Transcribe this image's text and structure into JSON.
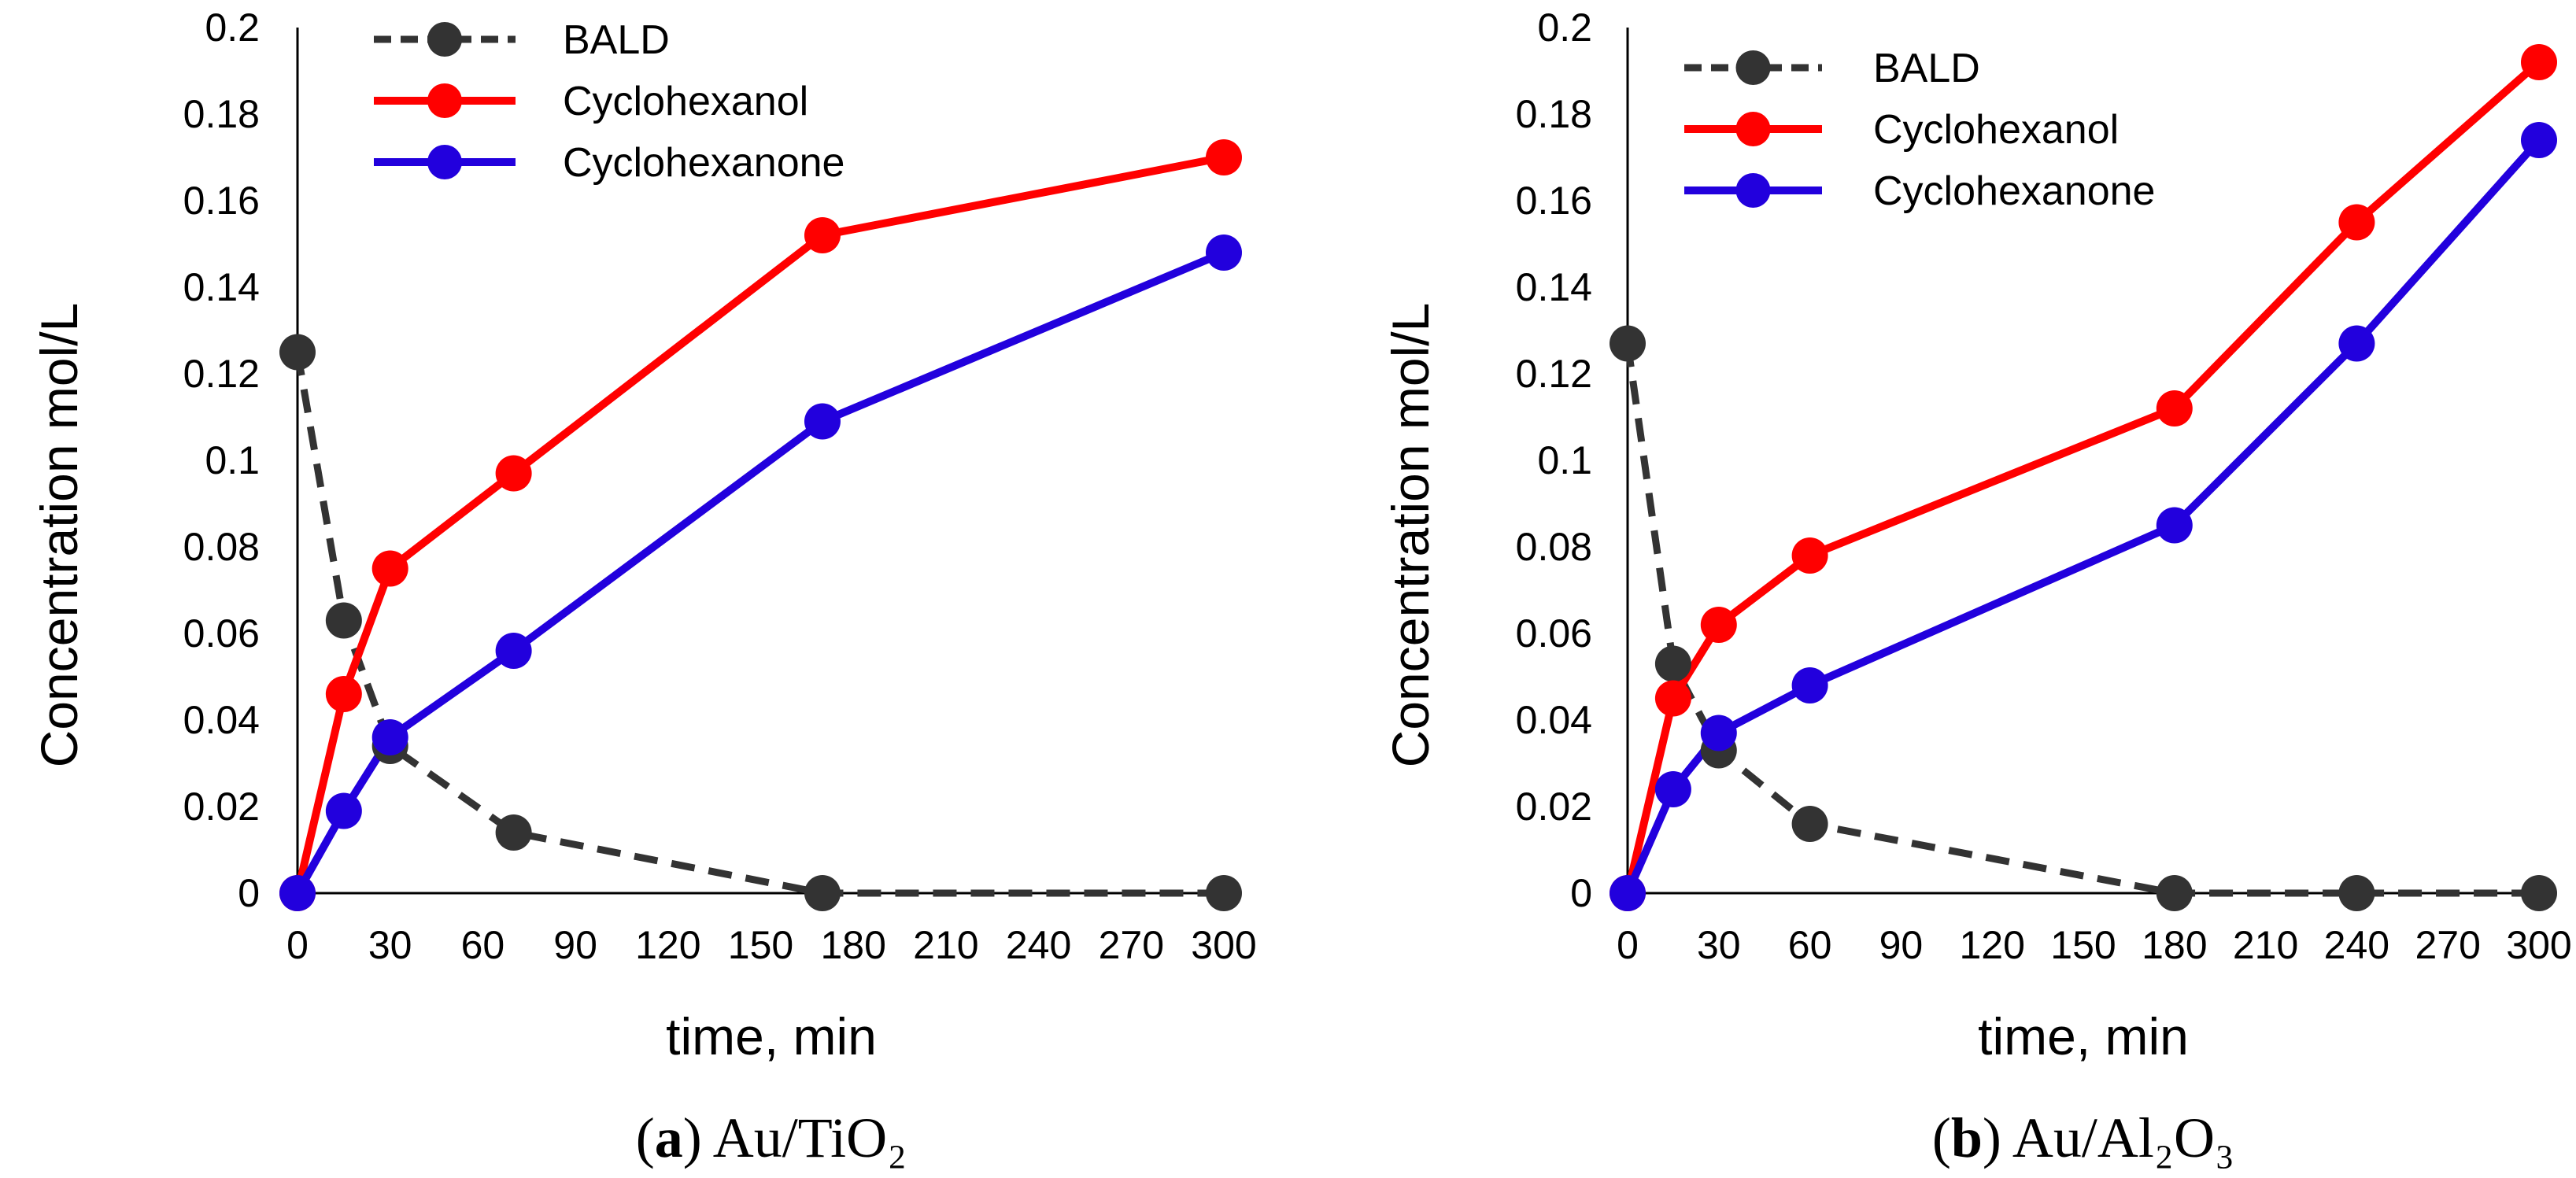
{
  "chart_data": [
    {
      "type": "line",
      "caption": {
        "letter": "a",
        "text": "Au/TiO₂"
      },
      "xlabel": "time, min",
      "ylabel": "Concentration mol/L",
      "xlim": [
        0,
        300
      ],
      "ylim": [
        0,
        0.2
      ],
      "xticks": [
        "0",
        "30",
        "60",
        "90",
        "120",
        "150",
        "180",
        "210",
        "240",
        "270",
        "300"
      ],
      "yticks": [
        "0",
        "0.02",
        "0.04",
        "0.06",
        "0.08",
        "0.1",
        "0.12",
        "0.14",
        "0.16",
        "0.18",
        "0.2"
      ],
      "legend_position": "top",
      "series": [
        {
          "name": "BALD",
          "color": "#333333",
          "style": "dashed",
          "x": [
            0,
            15,
            30,
            70,
            170,
            300
          ],
          "values": [
            0.125,
            0.063,
            0.034,
            0.014,
            0.0,
            0.0
          ]
        },
        {
          "name": "Cyclohexanol",
          "color": "#ff0000",
          "style": "solid",
          "x": [
            0,
            15,
            30,
            70,
            170,
            300
          ],
          "values": [
            0.0,
            0.046,
            0.075,
            0.097,
            0.152,
            0.17
          ]
        },
        {
          "name": "Cyclohexanone",
          "color": "#2200dd",
          "style": "solid",
          "x": [
            0,
            15,
            30,
            70,
            170,
            300
          ],
          "values": [
            0.0,
            0.019,
            0.036,
            0.056,
            0.109,
            0.148
          ]
        }
      ]
    },
    {
      "type": "line",
      "caption": {
        "letter": "b",
        "text": "Au/Al₂O₃"
      },
      "xlabel": "time, min",
      "ylabel": "Concentration mol/L",
      "xlim": [
        0,
        300
      ],
      "ylim": [
        0,
        0.2
      ],
      "xticks": [
        "0",
        "30",
        "60",
        "90",
        "120",
        "150",
        "180",
        "210",
        "240",
        "270",
        "300"
      ],
      "yticks": [
        "0",
        "0.02",
        "0.04",
        "0.06",
        "0.08",
        "0.1",
        "0.12",
        "0.14",
        "0.16",
        "0.18",
        "0.2"
      ],
      "legend_position": "top-left",
      "series": [
        {
          "name": "BALD",
          "color": "#333333",
          "style": "dashed",
          "x": [
            0,
            15,
            30,
            60,
            180,
            240,
            300
          ],
          "values": [
            0.127,
            0.053,
            0.033,
            0.016,
            0.0,
            0.0,
            0.0
          ]
        },
        {
          "name": "Cyclohexanol",
          "color": "#ff0000",
          "style": "solid",
          "x": [
            0,
            15,
            30,
            60,
            180,
            240,
            300
          ],
          "values": [
            0.0,
            0.045,
            0.062,
            0.078,
            0.112,
            0.155,
            0.192
          ]
        },
        {
          "name": "Cyclohexanone",
          "color": "#2200dd",
          "style": "solid",
          "x": [
            0,
            15,
            30,
            60,
            180,
            240,
            300
          ],
          "values": [
            0.0,
            0.024,
            0.037,
            0.048,
            0.085,
            0.127,
            0.174
          ]
        }
      ]
    }
  ]
}
